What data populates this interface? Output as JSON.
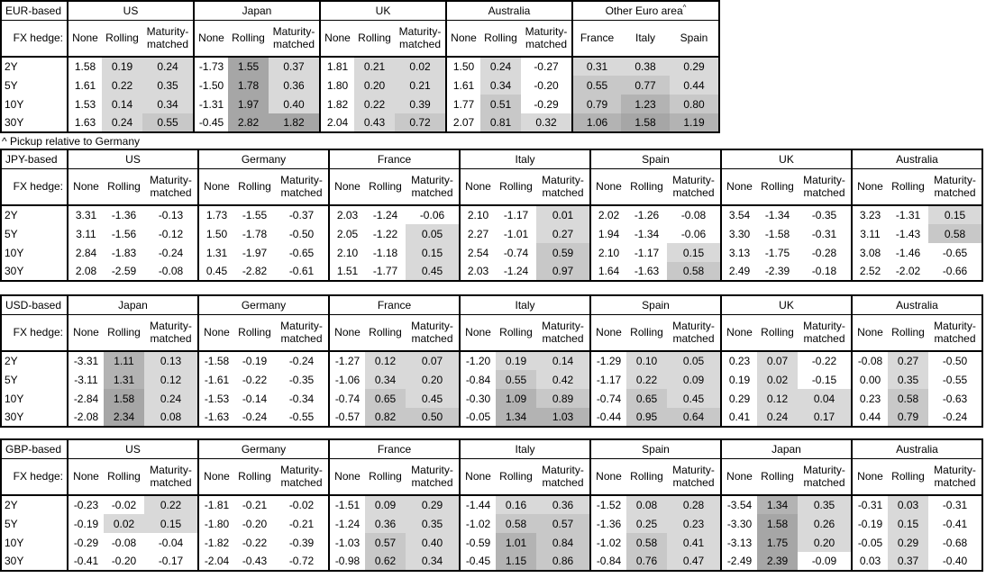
{
  "footnote": "^ Pickup relative to Germany",
  "colors": {
    "background": "#ffffff",
    "text": "#000000",
    "border": "#000000",
    "shade_light": "#d9d9d9",
    "shade_medium": "#c8c8c8",
    "shade_dark": "#b3b3b3",
    "shade_darkest": "#a6a6a6"
  },
  "shading_rule": {
    "applies_to": "Rolling and Maturity-matched columns, and all Other Euro area columns; only non-negative values are shaded",
    "thresholds": [
      0,
      0.5,
      1.0,
      1.55
    ],
    "levels": [
      "shade_light",
      "shade_medium",
      "shade_dark",
      "shade_darkest"
    ]
  },
  "chart_data": {
    "type": "table",
    "tables": [
      {
        "base": "EUR-based",
        "hedge_label": "FX hedge:",
        "tenors": [
          "2Y",
          "5Y",
          "10Y",
          "30Y"
        ],
        "default_cols": [
          "None",
          "Rolling",
          "Maturity-matched"
        ],
        "sections": [
          {
            "country": "US",
            "rows": [
              [
                1.58,
                0.19,
                0.24
              ],
              [
                1.61,
                0.22,
                0.35
              ],
              [
                1.53,
                0.14,
                0.34
              ],
              [
                1.63,
                0.24,
                0.55
              ]
            ]
          },
          {
            "country": "Japan",
            "rows": [
              [
                -1.73,
                1.55,
                0.37
              ],
              [
                -1.5,
                1.78,
                0.36
              ],
              [
                -1.31,
                1.97,
                0.4
              ],
              [
                -0.45,
                2.82,
                1.82
              ]
            ]
          },
          {
            "country": "UK",
            "rows": [
              [
                1.81,
                0.21,
                0.02
              ],
              [
                1.8,
                0.2,
                0.21
              ],
              [
                1.82,
                0.22,
                0.39
              ],
              [
                2.04,
                0.43,
                0.72
              ]
            ]
          },
          {
            "country": "Australia",
            "rows": [
              [
                1.5,
                0.24,
                -0.27
              ],
              [
                1.61,
                0.34,
                -0.2
              ],
              [
                1.77,
                0.51,
                -0.29
              ],
              [
                2.07,
                0.81,
                0.32
              ]
            ]
          },
          {
            "country": "Other Euro area",
            "sup": "^",
            "cols": [
              "France",
              "Italy",
              "Spain"
            ],
            "shade_all": true,
            "rows": [
              [
                0.31,
                0.38,
                0.29
              ],
              [
                0.55,
                0.77,
                0.44
              ],
              [
                0.79,
                1.23,
                0.8
              ],
              [
                1.06,
                1.58,
                1.19
              ]
            ]
          }
        ]
      },
      {
        "base": "JPY-based",
        "hedge_label": "FX hedge:",
        "tenors": [
          "2Y",
          "5Y",
          "10Y",
          "30Y"
        ],
        "default_cols": [
          "None",
          "Rolling",
          "Maturity-matched"
        ],
        "sections": [
          {
            "country": "US",
            "rows": [
              [
                3.31,
                -1.36,
                -0.13
              ],
              [
                3.11,
                -1.56,
                -0.12
              ],
              [
                2.84,
                -1.83,
                -0.24
              ],
              [
                2.08,
                -2.59,
                -0.08
              ]
            ]
          },
          {
            "country": "Germany",
            "rows": [
              [
                1.73,
                -1.55,
                -0.37
              ],
              [
                1.5,
                -1.78,
                -0.5
              ],
              [
                1.31,
                -1.97,
                -0.65
              ],
              [
                0.45,
                -2.82,
                -0.61
              ]
            ]
          },
          {
            "country": "France",
            "rows": [
              [
                2.03,
                -1.24,
                -0.06
              ],
              [
                2.05,
                -1.22,
                0.05
              ],
              [
                2.1,
                -1.18,
                0.15
              ],
              [
                1.51,
                -1.77,
                0.45
              ]
            ]
          },
          {
            "country": "Italy",
            "rows": [
              [
                2.1,
                -1.17,
                0.01
              ],
              [
                2.27,
                -1.01,
                0.27
              ],
              [
                2.54,
                -0.74,
                0.59
              ],
              [
                2.03,
                -1.24,
                0.97
              ]
            ]
          },
          {
            "country": "Spain",
            "rows": [
              [
                2.02,
                -1.26,
                -0.08
              ],
              [
                1.94,
                -1.34,
                -0.06
              ],
              [
                2.1,
                -1.17,
                0.15
              ],
              [
                1.64,
                -1.63,
                0.58
              ]
            ]
          },
          {
            "country": "UK",
            "rows": [
              [
                3.54,
                -1.34,
                -0.35
              ],
              [
                3.3,
                -1.58,
                -0.31
              ],
              [
                3.13,
                -1.75,
                -0.28
              ],
              [
                2.49,
                -2.39,
                -0.18
              ]
            ]
          },
          {
            "country": "Australia",
            "rows": [
              [
                3.23,
                -1.31,
                0.15
              ],
              [
                3.11,
                -1.43,
                0.58
              ],
              [
                3.08,
                -1.46,
                -0.65
              ],
              [
                2.52,
                -2.02,
                -0.66
              ]
            ]
          }
        ]
      },
      {
        "base": "USD-based",
        "hedge_label": "FX hedge:",
        "tenors": [
          "2Y",
          "5Y",
          "10Y",
          "30Y"
        ],
        "default_cols": [
          "None",
          "Rolling",
          "Maturity-matched"
        ],
        "sections": [
          {
            "country": "Japan",
            "rows": [
              [
                -3.31,
                1.11,
                0.13
              ],
              [
                -3.11,
                1.31,
                0.12
              ],
              [
                -2.84,
                1.58,
                0.24
              ],
              [
                -2.08,
                2.34,
                0.08
              ]
            ]
          },
          {
            "country": "Germany",
            "rows": [
              [
                -1.58,
                -0.19,
                -0.24
              ],
              [
                -1.61,
                -0.22,
                -0.35
              ],
              [
                -1.53,
                -0.14,
                -0.34
              ],
              [
                -1.63,
                -0.24,
                -0.55
              ]
            ]
          },
          {
            "country": "France",
            "rows": [
              [
                -1.27,
                0.12,
                0.07
              ],
              [
                -1.06,
                0.34,
                0.2
              ],
              [
                -0.74,
                0.65,
                0.45
              ],
              [
                -0.57,
                0.82,
                0.5
              ]
            ]
          },
          {
            "country": "Italy",
            "rows": [
              [
                -1.2,
                0.19,
                0.14
              ],
              [
                -0.84,
                0.55,
                0.42
              ],
              [
                -0.3,
                1.09,
                0.89
              ],
              [
                -0.05,
                1.34,
                1.03
              ]
            ]
          },
          {
            "country": "Spain",
            "rows": [
              [
                -1.29,
                0.1,
                0.05
              ],
              [
                -1.17,
                0.22,
                0.09
              ],
              [
                -0.74,
                0.65,
                0.45
              ],
              [
                -0.44,
                0.95,
                0.64
              ]
            ]
          },
          {
            "country": "UK",
            "rows": [
              [
                0.23,
                0.07,
                -0.22
              ],
              [
                0.19,
                0.02,
                -0.15
              ],
              [
                0.29,
                0.12,
                0.04
              ],
              [
                0.41,
                0.24,
                0.17
              ]
            ]
          },
          {
            "country": "Australia",
            "rows": [
              [
                -0.08,
                0.27,
                -0.5
              ],
              [
                0.0,
                0.35,
                -0.55
              ],
              [
                0.23,
                0.58,
                -0.63
              ],
              [
                0.44,
                0.79,
                -0.24
              ]
            ]
          }
        ]
      },
      {
        "base": "GBP-based",
        "hedge_label": "FX hedge:",
        "tenors": [
          "2Y",
          "5Y",
          "10Y",
          "30Y"
        ],
        "default_cols": [
          "None",
          "Rolling",
          "Maturity-matched"
        ],
        "sections": [
          {
            "country": "US",
            "rows": [
              [
                -0.23,
                -0.02,
                0.22
              ],
              [
                -0.19,
                0.02,
                0.15
              ],
              [
                -0.29,
                -0.08,
                -0.04
              ],
              [
                -0.41,
                -0.2,
                -0.17
              ]
            ]
          },
          {
            "country": "Germany",
            "rows": [
              [
                -1.81,
                -0.21,
                -0.02
              ],
              [
                -1.8,
                -0.2,
                -0.21
              ],
              [
                -1.82,
                -0.22,
                -0.39
              ],
              [
                -2.04,
                -0.43,
                -0.72
              ]
            ]
          },
          {
            "country": "France",
            "rows": [
              [
                -1.51,
                0.09,
                0.29
              ],
              [
                -1.24,
                0.36,
                0.35
              ],
              [
                -1.03,
                0.57,
                0.4
              ],
              [
                -0.98,
                0.62,
                0.34
              ]
            ]
          },
          {
            "country": "Italy",
            "rows": [
              [
                -1.44,
                0.16,
                0.36
              ],
              [
                -1.02,
                0.58,
                0.57
              ],
              [
                -0.59,
                1.01,
                0.84
              ],
              [
                -0.45,
                1.15,
                0.86
              ]
            ]
          },
          {
            "country": "Spain",
            "rows": [
              [
                -1.52,
                0.08,
                0.28
              ],
              [
                -1.36,
                0.25,
                0.23
              ],
              [
                -1.02,
                0.58,
                0.41
              ],
              [
                -0.84,
                0.76,
                0.47
              ]
            ]
          },
          {
            "country": "Japan",
            "rows": [
              [
                -3.54,
                1.34,
                0.35
              ],
              [
                -3.3,
                1.58,
                0.26
              ],
              [
                -3.13,
                1.75,
                0.2
              ],
              [
                -2.49,
                2.39,
                -0.09
              ]
            ]
          },
          {
            "country": "Australia",
            "rows": [
              [
                -0.31,
                0.03,
                -0.31
              ],
              [
                -0.19,
                0.15,
                -0.41
              ],
              [
                -0.05,
                0.29,
                -0.68
              ],
              [
                0.03,
                0.37,
                -0.4
              ]
            ]
          }
        ]
      }
    ]
  }
}
